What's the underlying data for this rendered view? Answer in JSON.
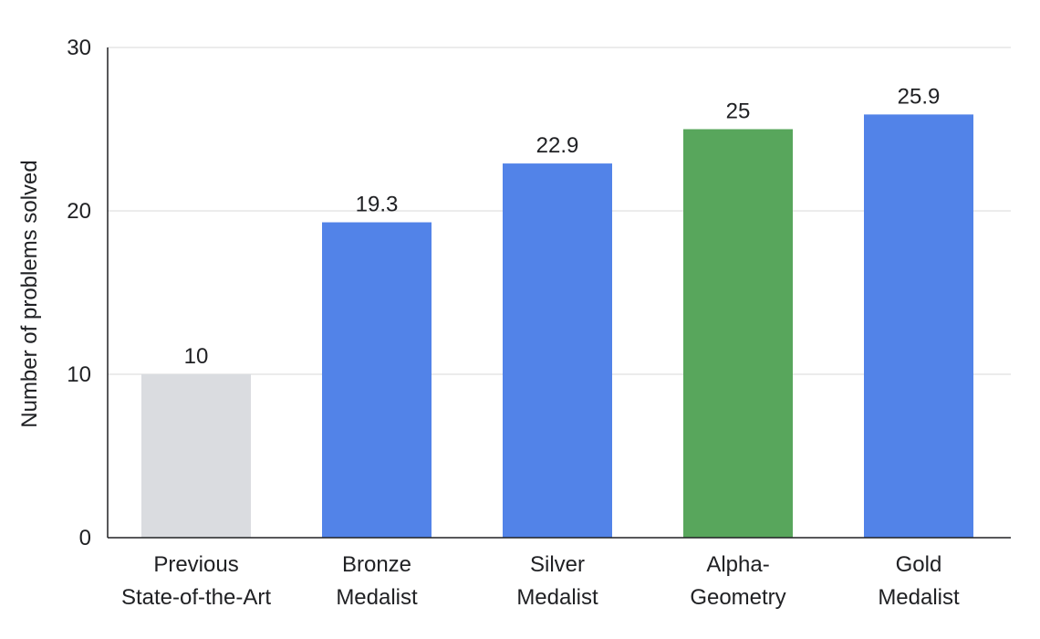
{
  "chart_data": {
    "type": "bar",
    "title": "",
    "xlabel": "",
    "ylabel": "Number of problems solved",
    "ylim": [
      0,
      30
    ],
    "yticks": [
      0,
      10,
      20,
      30
    ],
    "grid": true,
    "categories": [
      [
        "Previous",
        "State-of-the-Art"
      ],
      [
        "Bronze",
        "Medalist"
      ],
      [
        "Silver",
        "Medalist"
      ],
      [
        "Alpha-",
        "Geometry"
      ],
      [
        "Gold",
        "Medalist"
      ]
    ],
    "values": [
      10,
      19.3,
      22.9,
      25,
      25.9
    ],
    "value_labels": [
      "10",
      "19.3",
      "22.9",
      "25",
      "25.9"
    ],
    "bar_colors": [
      "#dadce0",
      "#5283e8",
      "#5283e8",
      "#58a65c",
      "#5283e8"
    ]
  }
}
